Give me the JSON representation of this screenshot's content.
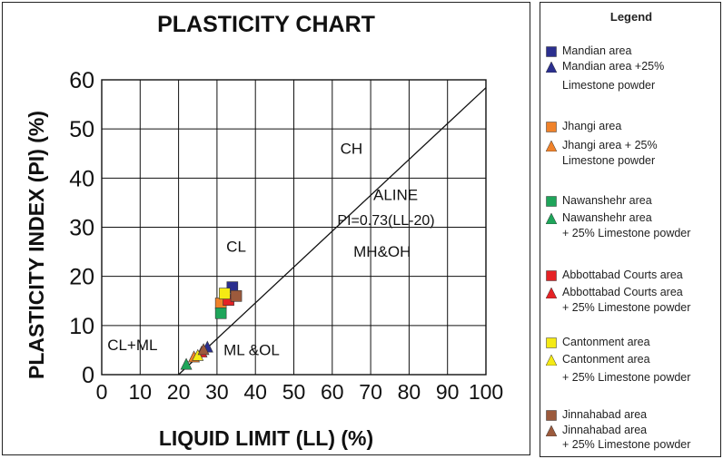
{
  "chart_data": {
    "type": "scatter",
    "title": "PLASTICITY CHART",
    "xlabel": "LIQUID LIMIT (LL) (%)",
    "ylabel": "PLASTICITY INDEX (PI) (%)",
    "xlim": [
      0,
      100
    ],
    "ylim": [
      0,
      60
    ],
    "xticks": [
      0,
      10,
      20,
      30,
      40,
      50,
      60,
      70,
      80,
      90,
      100
    ],
    "yticks": [
      0,
      10,
      20,
      30,
      40,
      50,
      60
    ],
    "grid": true,
    "a_line": {
      "name": "ALINE",
      "equation": "PI=0.73(LL-20)",
      "x": [
        20,
        100
      ],
      "y": [
        0,
        58.4
      ]
    },
    "region_labels": [
      {
        "text": "CH",
        "x": 65,
        "y": 45
      },
      {
        "text": "CL",
        "x": 35,
        "y": 25
      },
      {
        "text": "MH&OH",
        "x": 73,
        "y": 24
      },
      {
        "text": "CL+ML",
        "x": 8,
        "y": 5
      },
      {
        "text": "ML &OL",
        "x": 39,
        "y": 4
      }
    ],
    "series": [
      {
        "name": "Mandian area",
        "marker": "square",
        "color": "#2b2f8f",
        "x": [
          34
        ],
        "y": [
          17.8
        ]
      },
      {
        "name": "Mandian area +25% Limestone powder",
        "marker": "triangle",
        "color": "#2b2f8f",
        "x": [
          27.5
        ],
        "y": [
          5.5
        ]
      },
      {
        "name": "Jhangi area",
        "marker": "square",
        "color": "#f0822a",
        "x": [
          31
        ],
        "y": [
          14.5
        ]
      },
      {
        "name": "Jhangi area + 25% Limestone powder",
        "marker": "triangle",
        "color": "#f0822a",
        "x": [
          24
        ],
        "y": [
          3.5
        ]
      },
      {
        "name": "Nawanshehr area",
        "marker": "square",
        "color": "#1ea55a",
        "x": [
          31
        ],
        "y": [
          12.5
        ]
      },
      {
        "name": "Nawanshehr area + 25% Limestone powder",
        "marker": "triangle",
        "color": "#1ea55a",
        "x": [
          22
        ],
        "y": [
          2
        ]
      },
      {
        "name": "Abbottabad Courts area",
        "marker": "square",
        "color": "#e52225",
        "x": [
          33
        ],
        "y": [
          15.2
        ]
      },
      {
        "name": "Abbottabad Courts area + 25% Limestone powder",
        "marker": "triangle",
        "color": "#e52225",
        "x": [
          26
        ],
        "y": [
          4.5
        ]
      },
      {
        "name": "Cantonment area",
        "marker": "square",
        "color": "#f5ea14",
        "x": [
          32
        ],
        "y": [
          16.5
        ]
      },
      {
        "name": "Cantonment area + 25% Limestone powder",
        "marker": "triangle",
        "color": "#f5ea14",
        "x": [
          25
        ],
        "y": [
          3.8
        ]
      },
      {
        "name": "Jinnahabad area",
        "marker": "square",
        "color": "#9c5a3c",
        "x": [
          35
        ],
        "y": [
          16
        ]
      },
      {
        "name": "Jinnahabad area + 25% Limestone powder",
        "marker": "triangle",
        "color": "#9c5a3c",
        "x": [
          26.5
        ],
        "y": [
          5
        ]
      }
    ]
  },
  "legend": {
    "title": "Legend",
    "groups": [
      {
        "color": "#2b2f8f",
        "lines": [
          "Mandian area",
          "Mandian area +25%",
          "Limestone powder"
        ]
      },
      {
        "color": "#f0822a",
        "lines": [
          "Jhangi area",
          "Jhangi area + 25%",
          "Limestone powder"
        ]
      },
      {
        "color": "#1ea55a",
        "lines": [
          "Nawanshehr area",
          "Nawanshehr area",
          "+ 25% Limestone powder"
        ]
      },
      {
        "color": "#e52225",
        "lines": [
          "Abbottabad Courts area",
          "Abbottabad Courts area",
          "+ 25% Limestone powder"
        ]
      },
      {
        "color": "#f5ea14",
        "lines": [
          "Cantonment area",
          "Cantonment area",
          "+ 25% Limestone powder"
        ]
      },
      {
        "color": "#9c5a3c",
        "lines": [
          "Jinnahabad area",
          "Jinnahabad area",
          "+ 25% Limestone powder"
        ]
      }
    ]
  }
}
